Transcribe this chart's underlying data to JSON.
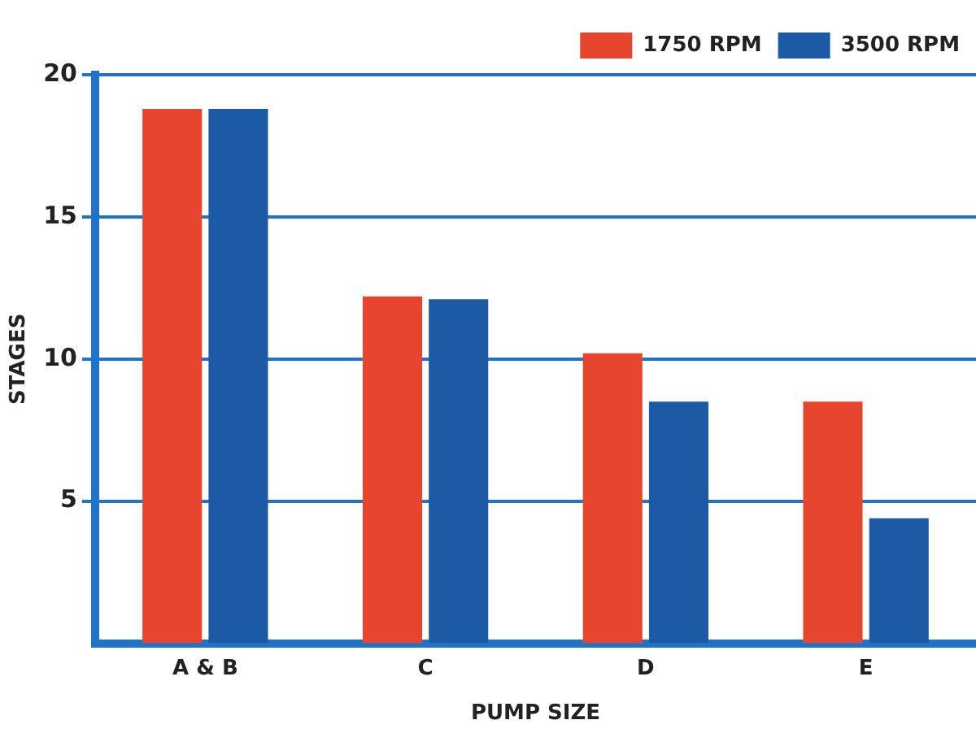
{
  "chart_data": {
    "type": "bar",
    "xlabel": "PUMP SIZE",
    "ylabel": "STAGES",
    "categories": [
      "A & B",
      "C",
      "D",
      "E"
    ],
    "series": [
      {
        "name": "1750 RPM",
        "color": "#e8452f",
        "values": [
          18.8,
          12.2,
          10.2,
          8.5
        ]
      },
      {
        "name": "3500 RPM",
        "color": "#1c5aa6",
        "values": [
          18.8,
          12.1,
          8.5,
          4.4
        ]
      }
    ],
    "ylim": [
      0,
      20
    ],
    "yticks": [
      5,
      10,
      15,
      20
    ],
    "grid": "y",
    "legend": "top right"
  }
}
